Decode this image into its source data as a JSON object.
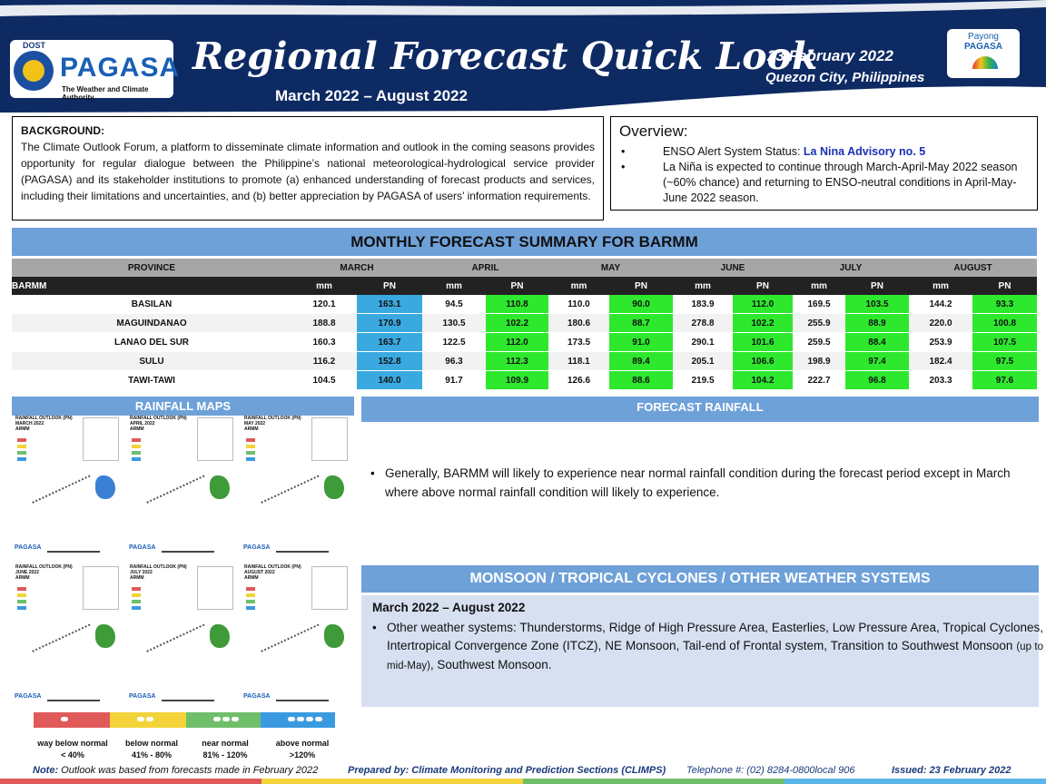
{
  "header": {
    "dost": "DOST",
    "logo_text": "PAGASA",
    "logo_tagline": "The Weather and Climate Authority",
    "title": "Regional Forecast Quick Look",
    "period": "March 2022 – August 2022",
    "date": "23 February 2022",
    "place": "Quezon City, Philippines",
    "payong_line1": "Payong",
    "payong_line2": "PAGASA",
    "colors": {
      "navy": "#0e2a63",
      "banner": "#6fa1d9",
      "blue_pn": "#3aa9e0",
      "green_pn": "#2ee82e"
    }
  },
  "background": {
    "heading": "BACKGROUND:",
    "text": "The Climate Outlook Forum, a platform to disseminate climate information and outlook in the coming seasons provides opportunity for regular dialogue between the Philippine’s national meteorological-hydrological service provider (PAGASA) and its stakeholder institutions to promote (a) enhanced understanding of forecast products and services, including their limitations and uncertainties, and (b) better appreciation by PAGASA of users’ information requirements."
  },
  "overview": {
    "heading": "Overview:",
    "item1_prefix": "ENSO Alert System Status: ",
    "item1_highlight": "La Nina Advisory no. 5",
    "item2": "La Niña is expected to continue through March-April-May 2022 season (~60% chance) and returning to ENSO-neutral conditions in April-May-June 2022 season."
  },
  "monthly": {
    "banner": "MONTHLY FORECAST SUMMARY FOR BARMM",
    "province_header": "PROVINCE",
    "region": "BARMM",
    "unit_mm": "mm",
    "unit_pn": "PN",
    "months": [
      "MARCH",
      "APRIL",
      "MAY",
      "JUNE",
      "JULY",
      "AUGUST"
    ],
    "rows": [
      {
        "name": "BASILAN",
        "v": [
          "120.1",
          "163.1",
          "94.5",
          "110.8",
          "110.0",
          "90.0",
          "183.9",
          "112.0",
          "169.5",
          "103.5",
          "144.2",
          "93.3"
        ]
      },
      {
        "name": "MAGUINDANAO",
        "v": [
          "188.8",
          "170.9",
          "130.5",
          "102.2",
          "180.6",
          "88.7",
          "278.8",
          "102.2",
          "255.9",
          "88.9",
          "220.0",
          "100.8"
        ]
      },
      {
        "name": "LANAO DEL SUR",
        "v": [
          "160.3",
          "163.7",
          "122.5",
          "112.0",
          "173.5",
          "91.0",
          "290.1",
          "101.6",
          "259.5",
          "88.4",
          "253.9",
          "107.5"
        ]
      },
      {
        "name": "SULU",
        "v": [
          "116.2",
          "152.8",
          "96.3",
          "112.3",
          "118.1",
          "89.4",
          "205.1",
          "106.6",
          "198.9",
          "97.4",
          "182.4",
          "97.5"
        ]
      },
      {
        "name": "TAWI-TAWI",
        "v": [
          "104.5",
          "140.0",
          "91.7",
          "109.9",
          "126.6",
          "88.6",
          "219.5",
          "104.2",
          "222.7",
          "96.8",
          "203.3",
          "97.6"
        ]
      }
    ]
  },
  "rainfall_maps": {
    "banner": "RAINFALL MAPS",
    "maps": [
      {
        "t1": "RAINFALL OUTLOOK (PN)",
        "t2": "MARCH 2022",
        "t3": "ARMM"
      },
      {
        "t1": "RAINFALL OUTLOOK (PN)",
        "t2": "APRIL 2022",
        "t3": "ARMM"
      },
      {
        "t1": "RAINFALL OUTLOOK (PN)",
        "t2": "MAY 2022",
        "t3": "ARMM"
      },
      {
        "t1": "RAINFALL OUTLOOK (PN)",
        "t2": "JUNE 2022",
        "t3": "ARMM"
      },
      {
        "t1": "RAINFALL OUTLOOK (PN)",
        "t2": "JULY 2022",
        "t3": "ARMM"
      },
      {
        "t1": "RAINFALL OUTLOOK (PN)",
        "t2": "AUGUST 2022",
        "t3": "ARMM"
      }
    ],
    "legend": [
      {
        "l1": "way below normal",
        "l2": "< 40%",
        "color": "#e05a5a"
      },
      {
        "l1": "below normal",
        "l2": "41% - 80%",
        "color": "#f2d43a"
      },
      {
        "l1": "near normal",
        "l2": "81% - 120%",
        "color": "#6fbf6a"
      },
      {
        "l1": "above normal",
        "l2": ">120%",
        "color": "#3a9ae0"
      }
    ]
  },
  "forecast_rainfall": {
    "banner": "FORECAST RAINFALL",
    "text": "Generally, BARMM will likely to experience near normal rainfall condition during the forecast period except in March where above normal rainfall condition will likely to experience."
  },
  "monsoon": {
    "banner": "MONSOON / TROPICAL CYCLONES / OTHER WEATHER SYSTEMS",
    "period": "March 2022 – August 2022",
    "text_a": "Other weather systems: Thunderstorms,  Ridge of High Pressure Area,  Easterlies, Low Pressure Area, Tropical Cyclones, Intertropical Convergence Zone (ITCZ), NE Monsoon, Tail-end of Frontal system, Transition to Southwest Monsoon ",
    "text_small": "(up to mid-May)",
    "text_b": ", Southwest Monsoon."
  },
  "footer": {
    "note_label": "Note:",
    "note_text": " Outlook was based from forecasts made in February 2022",
    "prepared": "Prepared by: Climate Monitoring and Prediction Sections (CLIMPS)",
    "telephone": "Telephone #: (02) 8284-0800local 906",
    "issued": "Issued: 23 February 2022"
  }
}
